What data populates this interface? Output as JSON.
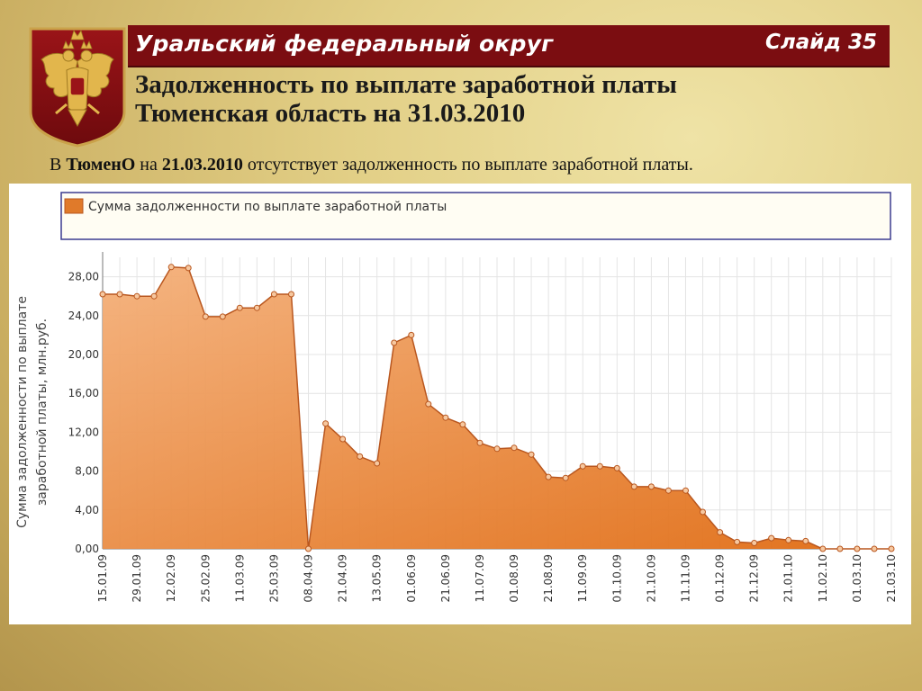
{
  "header": {
    "region": "Уральский федеральный округ",
    "slide": "Слайд 35"
  },
  "title": {
    "line1": "Задолженность по выплате заработной платы",
    "line2": "Тюменская область на 31.03.2010"
  },
  "note": {
    "prefix": "В ",
    "entity": "ТюменО",
    "mid": " на ",
    "date": "21.03.2010",
    "suffix": " отсутствует задолженность по выплате заработной платы."
  },
  "colors": {
    "header_bg": "#7b0d11",
    "series": "#e07a2a",
    "series_line": "#b9571f",
    "legend_border": "#3b3b8f"
  },
  "chart_data": {
    "type": "area",
    "ylabel": "Сумма задолженности по выплате заработной платы, млн.руб.",
    "ylim": [
      0,
      30
    ],
    "yticks": [
      "0,00",
      "4,00",
      "8,00",
      "12,00",
      "16,00",
      "20,00",
      "24,00",
      "28,00"
    ],
    "xtick_labels": [
      "15.01.09",
      "29.01.09",
      "12.02.09",
      "25.02.09",
      "11.03.09",
      "25.03.09",
      "08.04.09",
      "21.04.09",
      "13.05.09",
      "01.06.09",
      "21.06.09",
      "11.07.09",
      "01.08.09",
      "21.08.09",
      "11.09.09",
      "01.10.09",
      "21.10.09",
      "11.11.09",
      "01.12.09",
      "21.12.09",
      "21.01.10",
      "11.02.10",
      "01.03.10",
      "21.03.10"
    ],
    "grid": true,
    "legend_position": "top",
    "series": [
      {
        "name": "Сумма задолженности по выплате заработной платы",
        "values": [
          26.2,
          26.2,
          26.0,
          26.0,
          29.0,
          28.9,
          23.9,
          23.9,
          24.8,
          24.8,
          26.2,
          26.2,
          0.0,
          12.9,
          11.3,
          9.5,
          8.8,
          21.2,
          22.0,
          14.9,
          13.5,
          12.8,
          10.9,
          10.3,
          10.4,
          9.7,
          7.4,
          7.3,
          8.5,
          8.5,
          8.3,
          6.4,
          6.4,
          6.0,
          6.0,
          3.8,
          1.7,
          0.7,
          0.6,
          1.1,
          0.9,
          0.8,
          0.0,
          0.0,
          0.0,
          0.0,
          0.0
        ]
      }
    ]
  }
}
